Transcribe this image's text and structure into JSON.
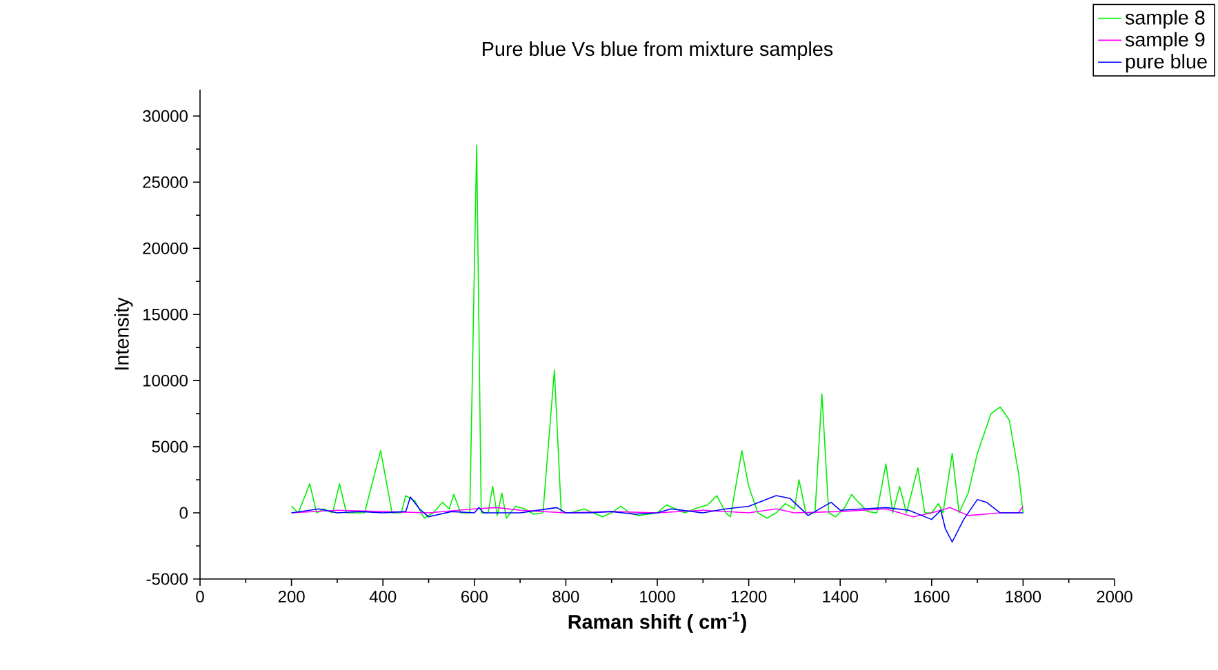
{
  "chart_data": {
    "type": "line",
    "title": "Pure blue Vs blue from mixture samples",
    "xlabel": "Raman shift  ( cm$^{-1}$)",
    "ylabel": "Intensity",
    "xlim": [
      0,
      2000
    ],
    "xticks": [
      0,
      200,
      400,
      600,
      800,
      1000,
      1200,
      1400,
      1600,
      1800,
      2000
    ],
    "ylim": [
      -5000,
      32000
    ],
    "yticks": [
      -5000,
      0,
      5000,
      10000,
      15000,
      20000,
      25000,
      30000
    ],
    "grid": false,
    "legend": "top right",
    "marker": "none",
    "line_style": "solid",
    "series": [
      {
        "name": "sample 8",
        "color": "#00ee00",
        "x": [
          200,
          215,
          240,
          255,
          270,
          290,
          305,
          320,
          340,
          360,
          395,
          420,
          440,
          450,
          470,
          490,
          510,
          530,
          545,
          555,
          570,
          590,
          605,
          615,
          630,
          640,
          650,
          660,
          670,
          690,
          710,
          730,
          750,
          775,
          790,
          810,
          840,
          860,
          880,
          900,
          920,
          940,
          960,
          1000,
          1020,
          1040,
          1060,
          1090,
          1110,
          1130,
          1150,
          1160,
          1185,
          1200,
          1220,
          1240,
          1260,
          1280,
          1300,
          1310,
          1325,
          1345,
          1360,
          1375,
          1390,
          1410,
          1425,
          1440,
          1460,
          1480,
          1500,
          1515,
          1530,
          1545,
          1570,
          1585,
          1600,
          1615,
          1625,
          1645,
          1660,
          1680,
          1700,
          1730,
          1750,
          1770,
          1790,
          1800
        ],
        "values": [
          500,
          0,
          2200,
          0,
          300,
          0,
          2200,
          0,
          0,
          0,
          4700,
          0,
          0,
          1300,
          900,
          -400,
          0,
          800,
          300,
          1400,
          0,
          0,
          27800,
          0,
          0,
          2000,
          -200,
          1500,
          -400,
          500,
          300,
          -100,
          0,
          10800,
          0,
          0,
          300,
          0,
          -300,
          0,
          500,
          0,
          -200,
          0,
          600,
          300,
          0,
          400,
          600,
          1300,
          0,
          -300,
          4700,
          2000,
          0,
          -400,
          0,
          700,
          300,
          2500,
          0,
          0,
          9000,
          0,
          -300,
          400,
          1400,
          800,
          100,
          0,
          3700,
          0,
          2000,
          0,
          3400,
          0,
          0,
          700,
          0,
          4500,
          0,
          1500,
          4500,
          7500,
          8000,
          7000,
          3000,
          0
        ]
      },
      {
        "name": "sample 9",
        "color": "#ff00ff",
        "x": [
          200,
          300,
          400,
          500,
          600,
          650,
          700,
          800,
          900,
          1000,
          1100,
          1200,
          1260,
          1300,
          1400,
          1500,
          1560,
          1600,
          1640,
          1680,
          1750,
          1790,
          1800
        ],
        "values": [
          0,
          200,
          100,
          0,
          300,
          400,
          200,
          0,
          100,
          0,
          200,
          0,
          300,
          0,
          100,
          300,
          -300,
          0,
          400,
          -200,
          0,
          0,
          500
        ]
      },
      {
        "name": "pure blue",
        "color": "#0000ff",
        "x": [
          200,
          240,
          260,
          300,
          350,
          400,
          450,
          460,
          480,
          500,
          550,
          600,
          610,
          620,
          700,
          780,
          800,
          850,
          900,
          950,
          1000,
          1030,
          1100,
          1150,
          1200,
          1260,
          1290,
          1330,
          1380,
          1400,
          1450,
          1500,
          1550,
          1600,
          1620,
          1630,
          1645,
          1670,
          1700,
          1720,
          1750,
          1800
        ],
        "values": [
          0,
          200,
          300,
          0,
          100,
          0,
          100,
          1200,
          300,
          -300,
          100,
          0,
          400,
          0,
          0,
          400,
          0,
          0,
          100,
          -100,
          0,
          300,
          0,
          300,
          500,
          1300,
          1100,
          -200,
          800,
          200,
          300,
          400,
          200,
          -500,
          200,
          -1200,
          -2200,
          -500,
          1000,
          800,
          0,
          0
        ]
      }
    ]
  }
}
